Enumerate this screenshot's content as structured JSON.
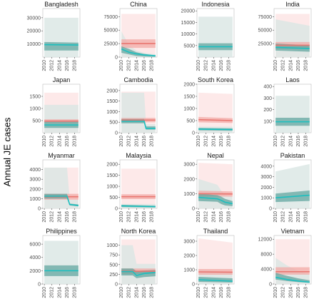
{
  "figure": {
    "ylabel": "Annual JE cases",
    "xticks": [
      2010,
      2012,
      2014,
      2016,
      2018
    ],
    "colors": {
      "panel_bg": "#ebebeb",
      "pink_band": "#fce4e4",
      "teal_band": "#d9e6e3",
      "red_line": "#e8756f",
      "red_ci": "#f2a9a6",
      "teal_line": "#1bbfbf",
      "teal_ci": "#5ba39b",
      "overlap": "#c9a097"
    }
  },
  "chart_data": [
    {
      "type": "area",
      "title": "Bangladesh",
      "x": [
        2010,
        2019
      ],
      "ylim": [
        0,
        37000
      ],
      "yticks": [
        10000,
        20000,
        30000
      ],
      "ytick_labels": [
        "10000",
        "20000",
        "30000"
      ],
      "series": [
        {
          "color": "teal",
          "lo": [
            0,
            0
          ],
          "hi": [
            30000,
            30000
          ],
          "ci_lo": [
            5000,
            5000
          ],
          "ci_hi": [
            11500,
            11000
          ],
          "values": [
            9500,
            9200
          ]
        }
      ]
    },
    {
      "type": "area",
      "title": "China",
      "x": [
        2010,
        2019
      ],
      "ylim": [
        0,
        90000
      ],
      "yticks": [
        0,
        25000,
        50000,
        75000
      ],
      "ytick_labels": [
        "0",
        "25000",
        "50000",
        "75000"
      ],
      "series": [
        {
          "color": "red",
          "lo": [
            0,
            0
          ],
          "hi": [
            80000,
            80000
          ],
          "ci_lo": [
            17000,
            17000
          ],
          "ci_hi": [
            33000,
            33000
          ],
          "values": [
            25000,
            25000
          ]
        },
        {
          "color": "teal",
          "x": [
            2010,
            2012,
            2014,
            2016,
            2018,
            2019
          ],
          "lo": [
            0,
            0,
            0,
            0,
            0,
            0
          ],
          "hi": [
            48000,
            22000,
            12000,
            8000,
            6000,
            5000
          ],
          "ci_lo": [
            8000,
            5000,
            2000,
            1000,
            500,
            300
          ],
          "ci_hi": [
            20000,
            15000,
            9000,
            6000,
            4000,
            3500
          ],
          "values": [
            15000,
            9000,
            6000,
            4000,
            3000,
            2500
          ]
        }
      ]
    },
    {
      "type": "area",
      "title": "Indonesia",
      "x": [
        2010,
        2019
      ],
      "ylim": [
        0,
        21000
      ],
      "yticks": [
        5000,
        10000,
        15000,
        20000
      ],
      "ytick_labels": [
        "5000",
        "10000",
        "15000",
        "20000"
      ],
      "series": [
        {
          "color": "teal",
          "lo": [
            0,
            0
          ],
          "hi": [
            17500,
            17500
          ],
          "ci_lo": [
            3000,
            3000
          ],
          "ci_hi": [
            6000,
            6000
          ],
          "values": [
            4500,
            4500
          ]
        }
      ]
    },
    {
      "type": "area",
      "title": "India",
      "x": [
        2010,
        2019
      ],
      "ylim": [
        0,
        90000
      ],
      "yticks": [
        25000,
        50000,
        75000
      ],
      "ytick_labels": [
        "25000",
        "50000",
        "75000"
      ],
      "series": [
        {
          "color": "red",
          "lo": [
            0,
            0
          ],
          "hi": [
            80000,
            80000
          ],
          "ci_lo": [
            15000,
            15000
          ],
          "ci_hi": [
            28000,
            28000
          ],
          "values": [
            22000,
            22000
          ]
        },
        {
          "color": "teal",
          "lo": [
            0,
            0
          ],
          "hi": [
            70000,
            58000
          ],
          "ci_lo": [
            12000,
            10000
          ],
          "ci_hi": [
            25000,
            22000
          ],
          "values": [
            18000,
            16000
          ]
        }
      ]
    },
    {
      "type": "area",
      "title": "Japan",
      "x": [
        2010,
        2019
      ],
      "ylim": [
        0,
        2000
      ],
      "yticks": [
        500,
        1000,
        1500
      ],
      "ytick_labels": [
        "500",
        "1000",
        "1500"
      ],
      "series": [
        {
          "color": "red",
          "lo": [
            0,
            0
          ],
          "hi": [
            1650,
            1650
          ],
          "ci_lo": [
            400,
            400
          ],
          "ci_hi": [
            550,
            550
          ],
          "values": [
            480,
            480
          ]
        },
        {
          "color": "teal",
          "lo": [
            0,
            0
          ],
          "hi": [
            1150,
            1150
          ],
          "ci_lo": [
            200,
            200
          ],
          "ci_hi": [
            450,
            450
          ],
          "values": [
            320,
            320
          ]
        }
      ]
    },
    {
      "type": "area",
      "title": "Cambodia",
      "x": [
        2010,
        2019
      ],
      "ylim": [
        0,
        2300
      ],
      "yticks": [
        0,
        500,
        1000,
        1500,
        2000
      ],
      "ytick_labels": [
        "0",
        "500",
        "1000",
        "1500",
        "2000"
      ],
      "series": [
        {
          "color": "red",
          "lo": [
            0,
            0
          ],
          "hi": [
            1950,
            1950
          ],
          "ci_lo": [
            500,
            500
          ],
          "ci_hi": [
            700,
            700
          ],
          "values": [
            600,
            600
          ]
        },
        {
          "color": "teal",
          "x": [
            2010,
            2015,
            2016,
            2016.5,
            2017,
            2019
          ],
          "lo": [
            0,
            0,
            0,
            0,
            0,
            0
          ],
          "hi": [
            1900,
            1900,
            1900,
            400,
            400,
            400
          ],
          "ci_lo": [
            450,
            450,
            450,
            150,
            150,
            150
          ],
          "ci_hi": [
            650,
            650,
            650,
            300,
            300,
            300
          ],
          "values": [
            550,
            550,
            550,
            200,
            200,
            200
          ]
        }
      ]
    },
    {
      "type": "area",
      "title": "South Korea",
      "x": [
        2010,
        2019
      ],
      "ylim": [
        0,
        2000
      ],
      "yticks": [
        0,
        500,
        1000,
        1500,
        2000
      ],
      "ytick_labels": [
        "0",
        "500",
        "1000",
        "1500",
        "2000"
      ],
      "series": [
        {
          "color": "red",
          "lo": [
            0,
            0
          ],
          "hi": [
            1650,
            1600
          ],
          "ci_lo": [
            430,
            400
          ],
          "ci_hi": [
            650,
            600
          ],
          "values": [
            540,
            500
          ]
        },
        {
          "color": "teal",
          "lo": [
            0,
            0
          ],
          "hi": [
            250,
            250
          ],
          "ci_lo": [
            100,
            80
          ],
          "ci_hi": [
            200,
            180
          ],
          "values": [
            150,
            130
          ]
        }
      ]
    },
    {
      "type": "area",
      "title": "Laos",
      "x": [
        2010,
        2019
      ],
      "ylim": [
        0,
        420
      ],
      "yticks": [
        100,
        200,
        300,
        400
      ],
      "ytick_labels": [
        "100",
        "200",
        "300",
        "400"
      ],
      "series": [
        {
          "color": "teal",
          "lo": [
            0,
            0
          ],
          "hi": [
            320,
            320
          ],
          "ci_lo": [
            60,
            60
          ],
          "ci_hi": [
            130,
            130
          ],
          "values": [
            95,
            95
          ]
        }
      ]
    },
    {
      "type": "area",
      "title": "Myanmar",
      "x": [
        2010,
        2019
      ],
      "ylim": [
        0,
        5000
      ],
      "yticks": [
        0,
        1000,
        2000,
        3000,
        4000
      ],
      "ytick_labels": [
        "0",
        "1000",
        "2000",
        "3000",
        "4000"
      ],
      "series": [
        {
          "color": "red",
          "x": [
            2010,
            2016,
            2017,
            2019
          ],
          "lo": [
            0,
            0,
            0,
            0
          ],
          "hi": [
            4200,
            4200,
            4200,
            4200
          ],
          "ci_lo": [
            900,
            900,
            900,
            900
          ],
          "ci_hi": [
            1500,
            1500,
            1500,
            1500
          ],
          "values": [
            1200,
            1200,
            1200,
            1200
          ]
        },
        {
          "color": "teal",
          "x": [
            2010,
            2016,
            2016.7,
            2019
          ],
          "lo": [
            0,
            0,
            0,
            0
          ],
          "hi": [
            4200,
            4200,
            900,
            900
          ],
          "ci_lo": [
            1000,
            1000,
            300,
            200
          ],
          "ci_hi": [
            1500,
            1500,
            500,
            400
          ],
          "values": [
            1250,
            1250,
            400,
            300
          ]
        }
      ]
    },
    {
      "type": "area",
      "title": "Malaysia",
      "x": [
        2010,
        2019
      ],
      "ylim": [
        0,
        2200
      ],
      "yticks": [
        0,
        500,
        1000,
        1500,
        2000
      ],
      "ytick_labels": [
        "0",
        "500",
        "1000",
        "1500",
        "2000"
      ],
      "series": [
        {
          "color": "red",
          "lo": [
            0,
            0
          ],
          "hi": [
            1800,
            1800
          ],
          "ci_lo": [
            420,
            420
          ],
          "ci_hi": [
            640,
            640
          ],
          "values": [
            530,
            530
          ]
        },
        {
          "color": "teal",
          "lo": [
            0,
            0
          ],
          "hi": [
            200,
            200
          ],
          "ci_lo": [
            60,
            40
          ],
          "ci_hi": [
            160,
            120
          ],
          "values": [
            110,
            80
          ]
        }
      ]
    },
    {
      "type": "area",
      "title": "Nepal",
      "x": [
        2010,
        2019
      ],
      "ylim": [
        0,
        3300
      ],
      "yticks": [
        0,
        1000,
        2000,
        3000
      ],
      "ytick_labels": [
        "0",
        "1000",
        "2000",
        "3000"
      ],
      "series": [
        {
          "color": "red",
          "lo": [
            0,
            0
          ],
          "hi": [
            3100,
            3000
          ],
          "ci_lo": [
            800,
            800
          ],
          "ci_hi": [
            1200,
            1150
          ],
          "values": [
            1000,
            980
          ]
        },
        {
          "color": "teal",
          "x": [
            2010,
            2015,
            2016,
            2017,
            2019
          ],
          "lo": [
            0,
            0,
            0,
            0,
            0
          ],
          "hi": [
            2000,
            1600,
            1200,
            900,
            800
          ],
          "ci_lo": [
            500,
            450,
            300,
            200,
            150
          ],
          "ci_hi": [
            1000,
            900,
            800,
            650,
            500
          ],
          "values": [
            750,
            650,
            550,
            420,
            320
          ]
        }
      ]
    },
    {
      "type": "area",
      "title": "Pakistan",
      "x": [
        2010,
        2019
      ],
      "ylim": [
        0,
        4600
      ],
      "yticks": [
        0,
        1000,
        2000,
        3000,
        4000
      ],
      "ytick_labels": [
        "0",
        "1000",
        "2000",
        "3000",
        "4000"
      ],
      "series": [
        {
          "color": "teal",
          "lo": [
            0,
            0
          ],
          "hi": [
            3500,
            4200
          ],
          "ci_lo": [
            600,
            700
          ],
          "ci_hi": [
            1400,
            1700
          ],
          "values": [
            1000,
            1250
          ]
        }
      ]
    },
    {
      "type": "area",
      "title": "Philippines",
      "x": [
        2010,
        2019
      ],
      "ylim": [
        0,
        7300
      ],
      "yticks": [
        0,
        2000,
        4000,
        6000
      ],
      "ytick_labels": [
        "0",
        "2000",
        "4000",
        "6000"
      ],
      "series": [
        {
          "color": "teal",
          "lo": [
            0,
            0
          ],
          "hi": [
            6500,
            6500
          ],
          "ci_lo": [
            1200,
            1200
          ],
          "ci_hi": [
            2800,
            2800
          ],
          "values": [
            2000,
            2000
          ]
        }
      ]
    },
    {
      "type": "area",
      "title": "North Korea",
      "x": [
        2010,
        2019
      ],
      "ylim": [
        0,
        1250
      ],
      "yticks": [
        0,
        250,
        500,
        750,
        1000
      ],
      "ytick_labels": [
        "0",
        "250",
        "500",
        "750",
        "1000"
      ],
      "series": [
        {
          "color": "red",
          "lo": [
            0,
            0
          ],
          "hi": [
            1150,
            1150
          ],
          "ci_lo": [
            260,
            260
          ],
          "ci_hi": [
            400,
            400
          ],
          "values": [
            330,
            330
          ]
        },
        {
          "color": "teal",
          "x": [
            2010,
            2013,
            2014,
            2016,
            2019
          ],
          "lo": [
            0,
            0,
            0,
            0,
            0
          ],
          "hi": [
            1000,
            1000,
            520,
            520,
            520
          ],
          "ci_lo": [
            220,
            220,
            150,
            180,
            200
          ],
          "ci_hi": [
            400,
            400,
            330,
            350,
            360
          ],
          "values": [
            320,
            320,
            220,
            270,
            300
          ]
        }
      ]
    },
    {
      "type": "area",
      "title": "Thailand",
      "x": [
        2010,
        2019
      ],
      "ylim": [
        0,
        3400
      ],
      "yticks": [
        0,
        1000,
        2000,
        3000
      ],
      "ytick_labels": [
        "0",
        "1000",
        "2000",
        "3000"
      ],
      "series": [
        {
          "color": "red",
          "lo": [
            0,
            0
          ],
          "hi": [
            3200,
            2900
          ],
          "ci_lo": [
            650,
            650
          ],
          "ci_hi": [
            1050,
            1050
          ],
          "values": [
            850,
            830
          ]
        },
        {
          "color": "teal",
          "lo": [
            0,
            0
          ],
          "hi": [
            1000,
            800
          ],
          "ci_lo": [
            150,
            100
          ],
          "ci_hi": [
            500,
            400
          ],
          "values": [
            300,
            200
          ]
        }
      ]
    },
    {
      "type": "area",
      "title": "Vietnam",
      "x": [
        2010,
        2019
      ],
      "ylim": [
        0,
        13000
      ],
      "yticks": [
        0,
        4000,
        8000,
        12000
      ],
      "ytick_labels": [
        "0",
        "4000",
        "8000",
        "12000"
      ],
      "series": [
        {
          "color": "red",
          "lo": [
            0,
            0
          ],
          "hi": [
            12000,
            12000
          ],
          "ci_lo": [
            2500,
            2500
          ],
          "ci_hi": [
            4500,
            4500
          ],
          "values": [
            3300,
            3300
          ]
        },
        {
          "color": "teal",
          "x": [
            2010,
            2013,
            2016,
            2019
          ],
          "lo": [
            0,
            0,
            0,
            0
          ],
          "hi": [
            7000,
            5000,
            3500,
            2500
          ],
          "ci_lo": [
            1200,
            800,
            500,
            300
          ],
          "ci_hi": [
            3000,
            2200,
            1500,
            1000
          ],
          "values": [
            1800,
            1200,
            800,
            500
          ]
        }
      ]
    }
  ]
}
